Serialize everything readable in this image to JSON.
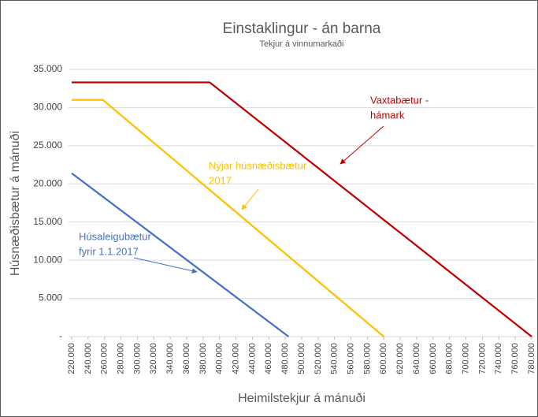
{
  "chart_data": {
    "type": "line",
    "title": "Einstaklingur - án barna",
    "subtitle": "Tekjur á vinnumarkaði",
    "xlabel": "Heimilstekjur á mánuði",
    "ylabel": "Húsnæðisbætur á mánuði",
    "series": [
      {
        "color": "#4472c4",
        "x": [
          220000,
          484000
        ],
        "values": [
          21400,
          0
        ]
      },
      {
        "color": "#ffc000",
        "x": [
          220000,
          258000,
          600000
        ],
        "values": [
          31000,
          31000,
          0
        ]
      },
      {
        "color": "#c00000",
        "x": [
          220000,
          388000,
          780000
        ],
        "values": [
          33300,
          33300,
          0
        ]
      }
    ],
    "annotations": [
      {
        "lines": [
          "Vaxtabætur -",
          "hámark"
        ],
        "color": "#c00000"
      },
      {
        "lines": [
          "Nýjar húsnæðisbætur",
          "2017"
        ],
        "color": "#ffc000"
      },
      {
        "lines": [
          "Húsaleigubætur",
          "fyrir 1.1.2017"
        ],
        "color": "#4472c4"
      }
    ],
    "xlim": [
      220000,
      780000
    ],
    "xticks": [
      {
        "value": 220000,
        "label": "220.000"
      },
      {
        "value": 240000,
        "label": "240.000"
      },
      {
        "value": 260000,
        "label": "260.000"
      },
      {
        "value": 280000,
        "label": "280.000"
      },
      {
        "value": 300000,
        "label": "300.000"
      },
      {
        "value": 320000,
        "label": "320.000"
      },
      {
        "value": 340000,
        "label": "340.000"
      },
      {
        "value": 360000,
        "label": "360.000"
      },
      {
        "value": 380000,
        "label": "380.000"
      },
      {
        "value": 400000,
        "label": "400.000"
      },
      {
        "value": 420000,
        "label": "420.000"
      },
      {
        "value": 440000,
        "label": "440.000"
      },
      {
        "value": 460000,
        "label": "460.000"
      },
      {
        "value": 480000,
        "label": "480.000"
      },
      {
        "value": 500000,
        "label": "500.000"
      },
      {
        "value": 520000,
        "label": "520.000"
      },
      {
        "value": 540000,
        "label": "540.000"
      },
      {
        "value": 560000,
        "label": "560.000"
      },
      {
        "value": 580000,
        "label": "580.000"
      },
      {
        "value": 600000,
        "label": "600.000"
      },
      {
        "value": 620000,
        "label": "620.000"
      },
      {
        "value": 640000,
        "label": "640.000"
      },
      {
        "value": 660000,
        "label": "660.000"
      },
      {
        "value": 680000,
        "label": "680.000"
      },
      {
        "value": 700000,
        "label": "700.000"
      },
      {
        "value": 720000,
        "label": "720.000"
      },
      {
        "value": 740000,
        "label": "740.000"
      },
      {
        "value": 760000,
        "label": "760.000"
      },
      {
        "value": 780000,
        "label": "780.000"
      }
    ],
    "ylim": [
      0,
      35000
    ],
    "yticks": [
      {
        "value": 0,
        "label": "-"
      },
      {
        "value": 5000,
        "label": "5.000"
      },
      {
        "value": 10000,
        "label": "10.000"
      },
      {
        "value": 15000,
        "label": "15.000"
      },
      {
        "value": 20000,
        "label": "20.000"
      },
      {
        "value": 25000,
        "label": "25.000"
      },
      {
        "value": 30000,
        "label": "30.000"
      },
      {
        "value": 35000,
        "label": "35.000"
      }
    ],
    "grid": true
  }
}
